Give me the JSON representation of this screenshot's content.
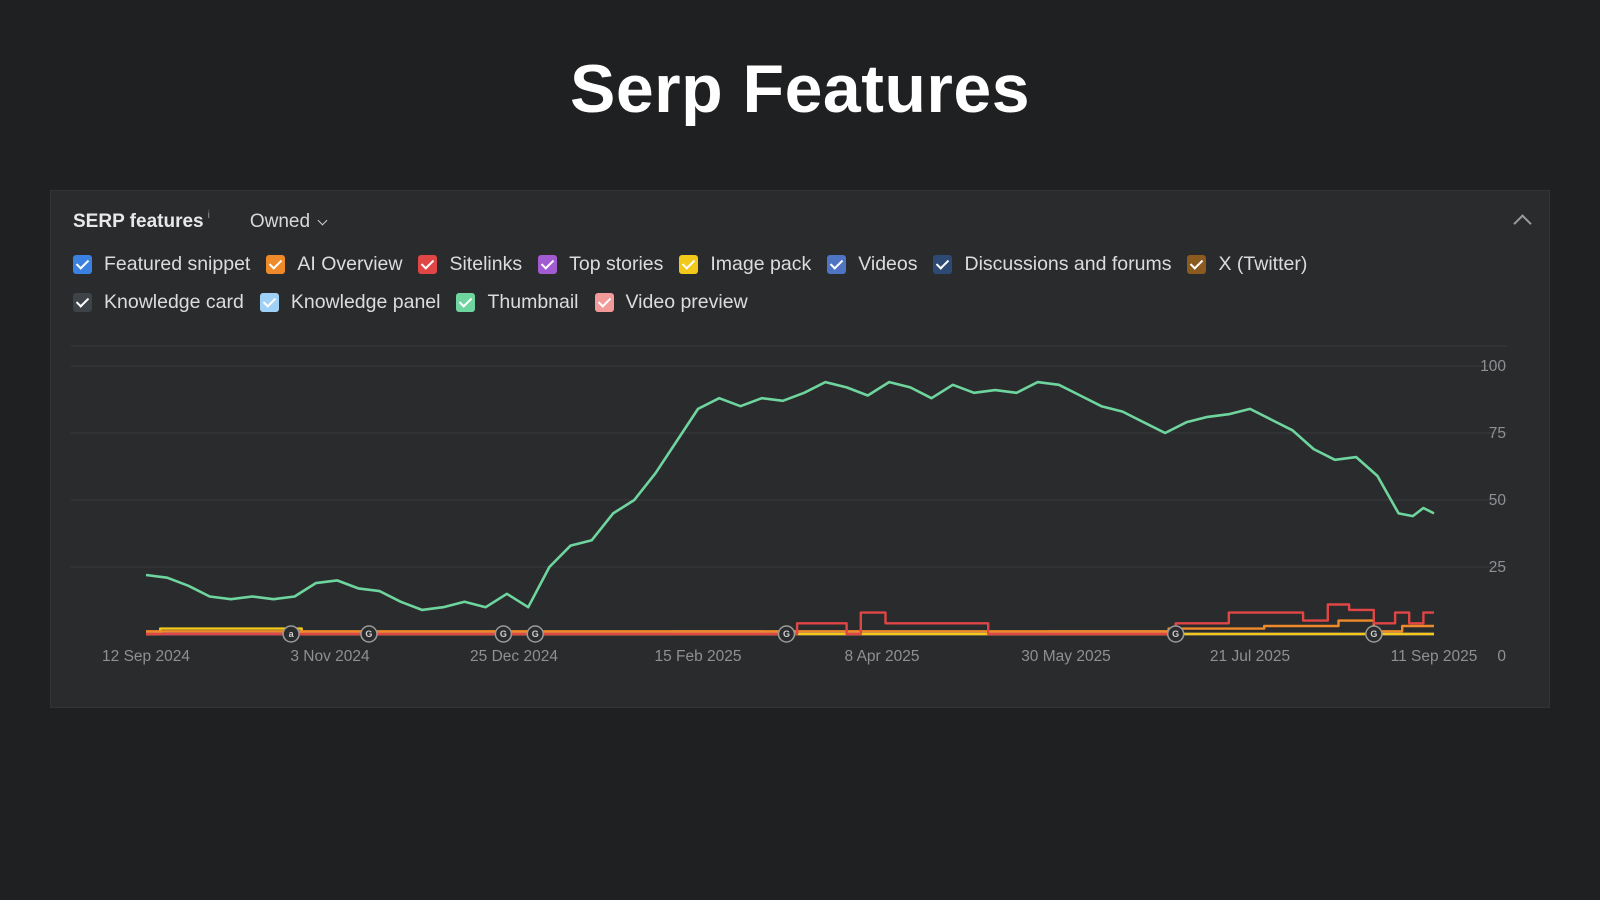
{
  "page": {
    "title": "Serp Features"
  },
  "panel": {
    "title": "SERP features",
    "info_icon": "i",
    "filter_value": "Owned",
    "collapse_icon": "chevron-up-icon"
  },
  "legend": [
    {
      "label": "Featured snippet",
      "color": "#3b82e0"
    },
    {
      "label": "AI Overview",
      "color": "#ef8a2b"
    },
    {
      "label": "Sitelinks",
      "color": "#e04646"
    },
    {
      "label": "Top stories",
      "color": "#a35bd1"
    },
    {
      "label": "Image pack",
      "color": "#f2c81b"
    },
    {
      "label": "Videos",
      "color": "#4f74c4"
    },
    {
      "label": "Discussions and forums",
      "color": "#2d4a74"
    },
    {
      "label": "X (Twitter)",
      "color": "#8a5a20"
    },
    {
      "label": "Knowledge card",
      "color": "#3e4249"
    },
    {
      "label": "Knowledge panel",
      "color": "#9fd0f5"
    },
    {
      "label": "Thumbnail",
      "color": "#6fd59e"
    },
    {
      "label": "Video preview",
      "color": "#f29a9a"
    }
  ],
  "markers": [
    {
      "date": "2024-10-23",
      "label": "a"
    },
    {
      "date": "2024-11-14",
      "label": "G"
    },
    {
      "date": "2024-12-22",
      "label": "G"
    },
    {
      "date": "2024-12-31",
      "label": "G"
    },
    {
      "date": "2025-03-12",
      "label": "G"
    },
    {
      "date": "2025-06-30",
      "label": "G"
    },
    {
      "date": "2025-08-25",
      "label": "G"
    }
  ],
  "chart_data": {
    "type": "line",
    "x_type": "date",
    "xlim": [
      "2024-09-12",
      "2025-09-11"
    ],
    "ylim": [
      0,
      100
    ],
    "x_ticks": [
      {
        "date": "2024-09-12",
        "label": "12 Sep 2024"
      },
      {
        "date": "2024-11-03",
        "label": "3 Nov 2024"
      },
      {
        "date": "2024-12-25",
        "label": "25 Dec 2024"
      },
      {
        "date": "2025-02-15",
        "label": "15 Feb 2025"
      },
      {
        "date": "2025-04-08",
        "label": "8 Apr 2025"
      },
      {
        "date": "2025-05-30",
        "label": "30 May 2025"
      },
      {
        "date": "2025-07-21",
        "label": "21 Jul 2025"
      },
      {
        "date": "2025-09-11",
        "label": "11 Sep 2025"
      }
    ],
    "y_ticks": [
      {
        "value": 100,
        "label": "100"
      },
      {
        "value": 75,
        "label": "75"
      },
      {
        "value": 50,
        "label": "50"
      },
      {
        "value": 25,
        "label": "25"
      },
      {
        "value": 0,
        "label": "0"
      }
    ],
    "grid": true,
    "series": [
      {
        "name": "Thumbnail",
        "color": "#6fd59e",
        "points": [
          [
            "2024-09-12",
            22
          ],
          [
            "2024-09-18",
            21
          ],
          [
            "2024-09-24",
            18
          ],
          [
            "2024-09-30",
            14
          ],
          [
            "2024-10-06",
            13
          ],
          [
            "2024-10-12",
            14
          ],
          [
            "2024-10-18",
            13
          ],
          [
            "2024-10-24",
            14
          ],
          [
            "2024-10-30",
            19
          ],
          [
            "2024-11-05",
            20
          ],
          [
            "2024-11-11",
            17
          ],
          [
            "2024-11-17",
            16
          ],
          [
            "2024-11-23",
            12
          ],
          [
            "2024-11-29",
            9
          ],
          [
            "2024-12-05",
            10
          ],
          [
            "2024-12-11",
            12
          ],
          [
            "2024-12-17",
            10
          ],
          [
            "2024-12-23",
            15
          ],
          [
            "2024-12-29",
            10
          ],
          [
            "2025-01-04",
            25
          ],
          [
            "2025-01-10",
            33
          ],
          [
            "2025-01-16",
            35
          ],
          [
            "2025-01-22",
            45
          ],
          [
            "2025-01-28",
            50
          ],
          [
            "2025-02-03",
            60
          ],
          [
            "2025-02-09",
            72
          ],
          [
            "2025-02-15",
            84
          ],
          [
            "2025-02-21",
            88
          ],
          [
            "2025-02-27",
            85
          ],
          [
            "2025-03-05",
            88
          ],
          [
            "2025-03-11",
            87
          ],
          [
            "2025-03-17",
            90
          ],
          [
            "2025-03-23",
            94
          ],
          [
            "2025-03-29",
            92
          ],
          [
            "2025-04-04",
            89
          ],
          [
            "2025-04-10",
            94
          ],
          [
            "2025-04-16",
            92
          ],
          [
            "2025-04-22",
            88
          ],
          [
            "2025-04-28",
            93
          ],
          [
            "2025-05-04",
            90
          ],
          [
            "2025-05-10",
            91
          ],
          [
            "2025-05-16",
            90
          ],
          [
            "2025-05-22",
            94
          ],
          [
            "2025-05-28",
            93
          ],
          [
            "2025-06-03",
            89
          ],
          [
            "2025-06-09",
            85
          ],
          [
            "2025-06-15",
            83
          ],
          [
            "2025-06-21",
            79
          ],
          [
            "2025-06-27",
            75
          ],
          [
            "2025-07-03",
            79
          ],
          [
            "2025-07-09",
            81
          ],
          [
            "2025-07-15",
            82
          ],
          [
            "2025-07-21",
            84
          ],
          [
            "2025-07-27",
            80
          ],
          [
            "2025-08-02",
            76
          ],
          [
            "2025-08-08",
            69
          ],
          [
            "2025-08-14",
            65
          ],
          [
            "2025-08-20",
            66
          ],
          [
            "2025-08-26",
            59
          ],
          [
            "2025-09-01",
            45
          ],
          [
            "2025-09-05",
            44
          ],
          [
            "2025-09-08",
            47
          ],
          [
            "2025-09-11",
            45
          ]
        ]
      },
      {
        "name": "Sitelinks",
        "color": "#e04646",
        "points": [
          [
            "2024-09-12",
            0
          ],
          [
            "2025-03-15",
            0
          ],
          [
            "2025-03-15",
            4
          ],
          [
            "2025-03-29",
            4
          ],
          [
            "2025-03-29",
            0
          ],
          [
            "2025-04-02",
            0
          ],
          [
            "2025-04-02",
            8
          ],
          [
            "2025-04-09",
            8
          ],
          [
            "2025-04-09",
            4
          ],
          [
            "2025-05-08",
            4
          ],
          [
            "2025-05-08",
            0
          ],
          [
            "2025-06-30",
            0
          ],
          [
            "2025-06-30",
            4
          ],
          [
            "2025-07-15",
            4
          ],
          [
            "2025-07-15",
            8
          ],
          [
            "2025-08-05",
            8
          ],
          [
            "2025-08-05",
            5
          ],
          [
            "2025-08-12",
            5
          ],
          [
            "2025-08-12",
            11
          ],
          [
            "2025-08-18",
            11
          ],
          [
            "2025-08-18",
            9
          ],
          [
            "2025-08-25",
            9
          ],
          [
            "2025-08-25",
            4
          ],
          [
            "2025-08-31",
            4
          ],
          [
            "2025-08-31",
            8
          ],
          [
            "2025-09-04",
            8
          ],
          [
            "2025-09-04",
            4
          ],
          [
            "2025-09-08",
            4
          ],
          [
            "2025-09-08",
            8
          ],
          [
            "2025-09-11",
            8
          ]
        ]
      },
      {
        "name": "AI Overview",
        "color": "#ef8a2b",
        "points": [
          [
            "2024-09-12",
            1
          ],
          [
            "2025-06-28",
            1
          ],
          [
            "2025-06-28",
            2
          ],
          [
            "2025-07-25",
            2
          ],
          [
            "2025-07-25",
            3
          ],
          [
            "2025-08-15",
            3
          ],
          [
            "2025-08-15",
            5
          ],
          [
            "2025-08-25",
            5
          ],
          [
            "2025-08-25",
            1
          ],
          [
            "2025-09-02",
            1
          ],
          [
            "2025-09-02",
            3
          ],
          [
            "2025-09-11",
            3
          ]
        ]
      },
      {
        "name": "Image pack",
        "color": "#f2c81b",
        "points": [
          [
            "2024-09-12",
            0
          ],
          [
            "2024-09-16",
            0
          ],
          [
            "2024-09-16",
            2
          ],
          [
            "2024-10-26",
            2
          ],
          [
            "2024-10-26",
            0
          ],
          [
            "2025-09-11",
            0
          ]
        ]
      },
      {
        "name": "Videos",
        "color": "#4f74c4",
        "points": [
          [
            "2024-09-12",
            0
          ],
          [
            "2025-02-08",
            0
          ],
          [
            "2025-02-08",
            1
          ],
          [
            "2025-03-05",
            1
          ],
          [
            "2025-03-05",
            0
          ],
          [
            "2025-05-25",
            0
          ],
          [
            "2025-05-25",
            1
          ],
          [
            "2025-06-28",
            1
          ],
          [
            "2025-06-28",
            0
          ],
          [
            "2025-09-11",
            0
          ]
        ]
      },
      {
        "name": "Video preview",
        "color": "#f29a9a",
        "points": [
          [
            "2024-09-12",
            0
          ],
          [
            "2025-09-11",
            0
          ]
        ]
      }
    ]
  }
}
